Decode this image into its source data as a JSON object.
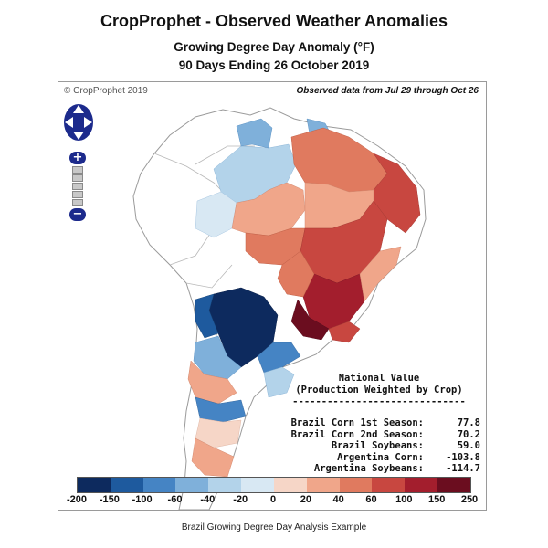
{
  "header": {
    "title": "CropProphet - Observed Weather Anomalies",
    "subtitle": "Growing Degree Day Anomaly (°F)",
    "period": "90 Days Ending 26 October 2019"
  },
  "map": {
    "copyright": "© CropProphet 2019",
    "observed_note": "Observed data from Jul 29 through Oct 26",
    "controls": {
      "zoom_in": "+",
      "zoom_out": "−"
    },
    "colors": {
      "ocean": "#ffffff",
      "land_neutral": "#ffffff",
      "border": "#b8b8b8"
    }
  },
  "national_value": {
    "heading_line1": "National Value",
    "heading_line2": "(Production Weighted by Crop)",
    "divider": "------------------------------",
    "rows": [
      {
        "label": "Brazil Corn 1st Season:",
        "value": "77.8"
      },
      {
        "label": "Brazil Corn 2nd Season:",
        "value": "70.2"
      },
      {
        "label": "Brazil Soybeans:",
        "value": "59.0"
      },
      {
        "label": "Argentina Corn:",
        "value": "-103.8"
      },
      {
        "label": "Argentina Soybeans:",
        "value": "-114.7"
      }
    ]
  },
  "legend": {
    "ticks": [
      "-200",
      "-150",
      "-100",
      "-60",
      "-40",
      "-20",
      "0",
      "20",
      "40",
      "60",
      "100",
      "150",
      "250"
    ],
    "colors": [
      "#0d2a5e",
      "#1e5a9e",
      "#4584c4",
      "#7fb0da",
      "#b3d3ea",
      "#d8e8f3",
      "#f6d6c7",
      "#f0a68a",
      "#e07a5f",
      "#c84740",
      "#a31e2d",
      "#6b0d1f"
    ]
  },
  "caption": "Brazil Growing Degree Day Analysis Example"
}
